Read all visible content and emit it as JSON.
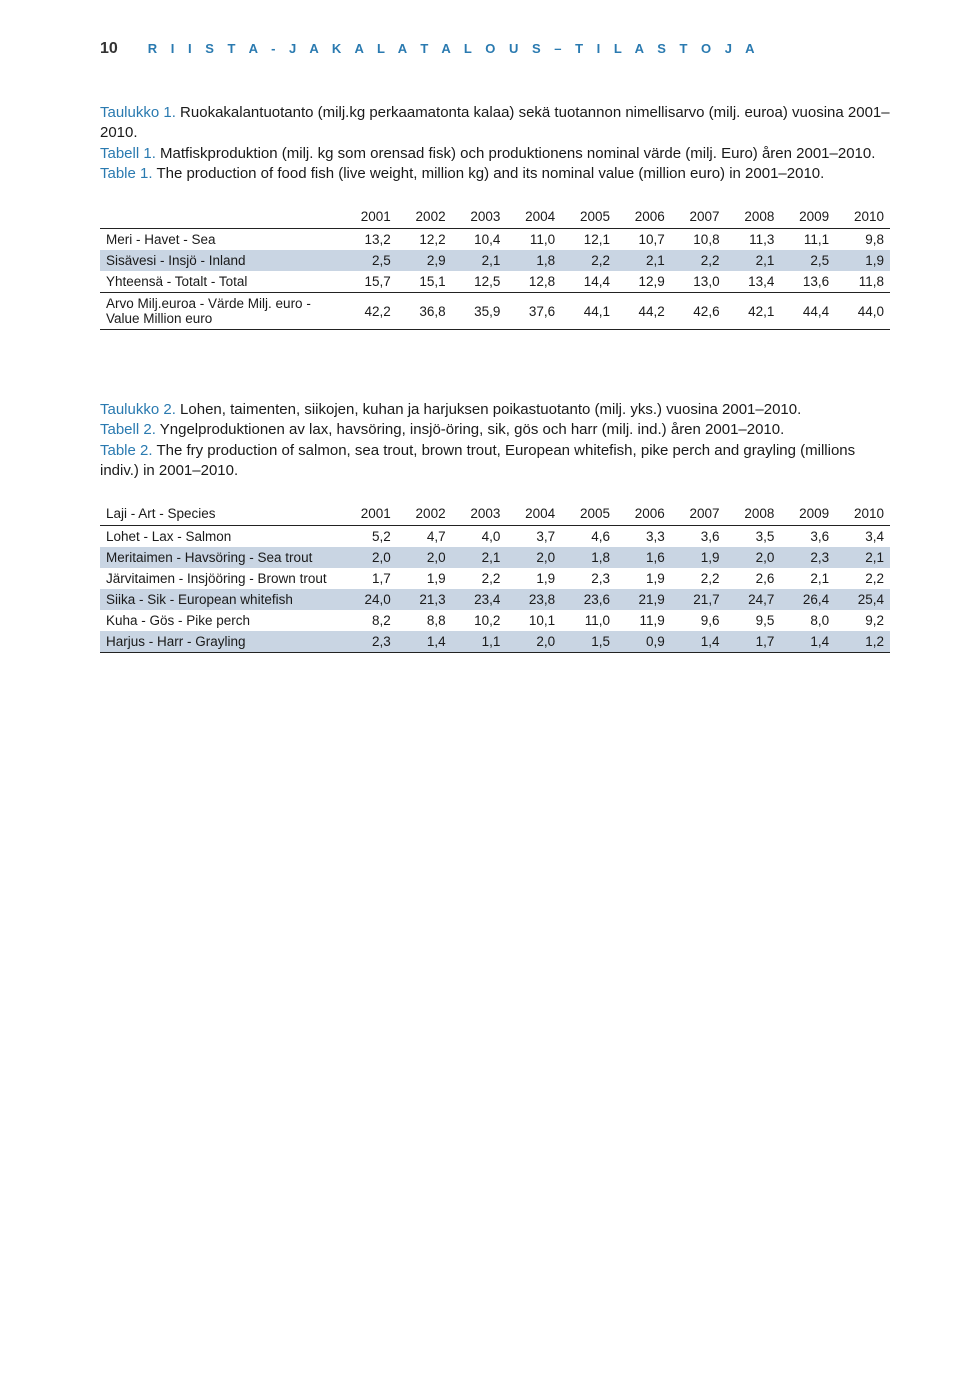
{
  "header": {
    "page_number": "10",
    "running_title": "R I I S T A -   J A   K A L A T A L O U S   –   T I L A S T O J A"
  },
  "captions": {
    "t1_fi_lead": "Taulukko 1.",
    "t1_fi_rest": " Ruokakalantuotanto (milj.kg perkaamatonta kalaa) sekä tuotannon nimellisarvo (milj. euroa) vuosina 2001–2010.",
    "t1_sv_lead": "Tabell 1.",
    "t1_sv_rest": " Matfiskproduktion (milj. kg som orensad fisk) och produktionens nominal värde (milj. Euro) åren 2001–2010.",
    "t1_en_lead": "Table 1.",
    "t1_en_rest": " The production of food fish (live weight, million kg) and its nominal value (million euro) in 2001–2010.",
    "t2_fi_lead": "Taulukko 2.",
    "t2_fi_rest": " Lohen, taimenten, siikojen, kuhan ja harjuksen poikastuotanto (milj. yks.) vuosina 2001–2010.",
    "t2_sv_lead": "Tabell 2.",
    "t2_sv_rest": " Yngelproduktionen av lax, havsöring, insjö-öring, sik, gös och harr (milj. ind.) åren 2001–2010.",
    "t2_en_lead": "Table 2.",
    "t2_en_rest": " The fry production of salmon, sea trout, brown trout, European whitefish, pike perch and grayling (millions indiv.) in 2001–2010."
  },
  "years": [
    "2001",
    "2002",
    "2003",
    "2004",
    "2005",
    "2006",
    "2007",
    "2008",
    "2009",
    "2010"
  ],
  "table1": {
    "rows": [
      {
        "label": "Meri - Havet - Sea",
        "v": [
          "13,2",
          "12,2",
          "10,4",
          "11,0",
          "12,1",
          "10,7",
          "10,8",
          "11,3",
          "11,1",
          "9,8"
        ],
        "shade": false
      },
      {
        "label": "Sisävesi - Insjö - Inland",
        "v": [
          "2,5",
          "2,9",
          "2,1",
          "1,8",
          "2,2",
          "2,1",
          "2,2",
          "2,1",
          "2,5",
          "1,9"
        ],
        "shade": true
      },
      {
        "label": "Yhteensä - Totalt - Total",
        "v": [
          "15,7",
          "15,1",
          "12,5",
          "12,8",
          "14,4",
          "12,9",
          "13,0",
          "13,4",
          "13,6",
          "11,8"
        ],
        "shade": false,
        "line": true
      },
      {
        "label": "Arvo Milj.euroa - Värde Milj. euro - Value Million euro",
        "v": [
          "42,2",
          "36,8",
          "35,9",
          "37,6",
          "44,1",
          "44,2",
          "42,6",
          "42,1",
          "44,4",
          "44,0"
        ],
        "shade": false,
        "line": true
      }
    ]
  },
  "table2": {
    "first_col_header": "Laji - Art - Species",
    "rows": [
      {
        "label": "Lohet - Lax - Salmon",
        "v": [
          "5,2",
          "4,7",
          "4,0",
          "3,7",
          "4,6",
          "3,3",
          "3,6",
          "3,5",
          "3,6",
          "3,4"
        ],
        "shade": false
      },
      {
        "label": "Meritaimen - Havsöring - Sea trout",
        "v": [
          "2,0",
          "2,0",
          "2,1",
          "2,0",
          "1,8",
          "1,6",
          "1,9",
          "2,0",
          "2,3",
          "2,1"
        ],
        "shade": true
      },
      {
        "label": "Järvitaimen - Insjööring - Brown trout",
        "v": [
          "1,7",
          "1,9",
          "2,2",
          "1,9",
          "2,3",
          "1,9",
          "2,2",
          "2,6",
          "2,1",
          "2,2"
        ],
        "shade": false
      },
      {
        "label": "Siika - Sik - European whitefish",
        "v": [
          "24,0",
          "21,3",
          "23,4",
          "23,8",
          "23,6",
          "21,9",
          "21,7",
          "24,7",
          "26,4",
          "25,4"
        ],
        "shade": true
      },
      {
        "label": "Kuha - Gös - Pike perch",
        "v": [
          "8,2",
          "8,8",
          "10,2",
          "10,1",
          "11,0",
          "11,9",
          "9,6",
          "9,5",
          "8,0",
          "9,2"
        ],
        "shade": false
      },
      {
        "label": "Harjus - Harr - Grayling",
        "v": [
          "2,3",
          "1,4",
          "1,1",
          "2,0",
          "1,5",
          "0,9",
          "1,4",
          "1,7",
          "1,4",
          "1,2"
        ],
        "shade": true,
        "line": true
      }
    ]
  },
  "style": {
    "accent_color": "#2a7ab0",
    "shade_color": "#c9d5e3",
    "text_color": "#1a1a1a",
    "background": "#ffffff"
  }
}
